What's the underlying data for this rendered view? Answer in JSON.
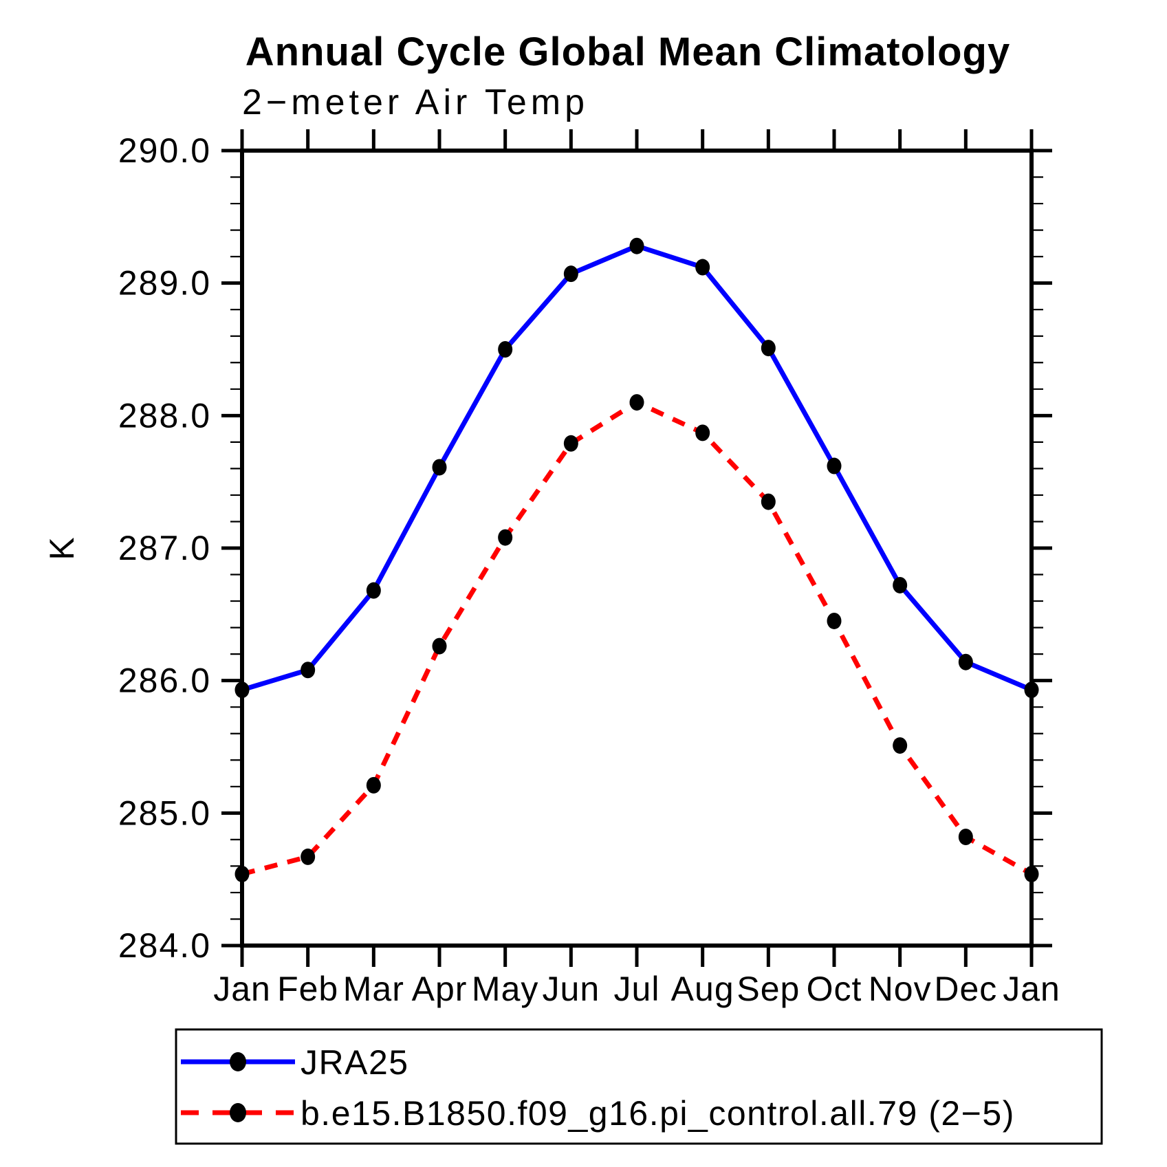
{
  "chart_data": {
    "type": "line",
    "title": "Annual Cycle Global Mean Climatology",
    "subtitle": "2−meter Air Temp",
    "ylabel": "K",
    "xlabel": "",
    "categories": [
      "Jan",
      "Feb",
      "Mar",
      "Apr",
      "May",
      "Jun",
      "Jul",
      "Aug",
      "Sep",
      "Oct",
      "Nov",
      "Dec",
      "Jan"
    ],
    "series": [
      {
        "name": "JRA25",
        "line_style": "solid",
        "line_color": "#0000ff",
        "marker": "filled-circle",
        "marker_color": "#000000",
        "values": [
          285.93,
          286.08,
          286.68,
          287.61,
          288.5,
          289.07,
          289.28,
          289.12,
          288.51,
          287.62,
          286.72,
          286.14,
          285.93
        ]
      },
      {
        "name": "b.e15.B1850.f09_g16.pi_control.all.79 (2−5)",
        "line_style": "dashed",
        "line_color": "#ff0000",
        "marker": "filled-circle",
        "marker_color": "#000000",
        "values": [
          284.54,
          284.67,
          285.21,
          286.26,
          287.08,
          287.79,
          288.1,
          287.87,
          287.35,
          286.45,
          285.51,
          284.82,
          284.54
        ]
      }
    ],
    "ylim": [
      284.0,
      290.0
    ],
    "ytick_interval": 1.0,
    "yminor_interval": 0.2,
    "ytick_labels": [
      "284.0",
      "285.0",
      "286.0",
      "287.0",
      "288.0",
      "289.0",
      "290.0"
    ],
    "grid": false,
    "legend_position": "bottom-left",
    "axis_color": "#000000"
  }
}
